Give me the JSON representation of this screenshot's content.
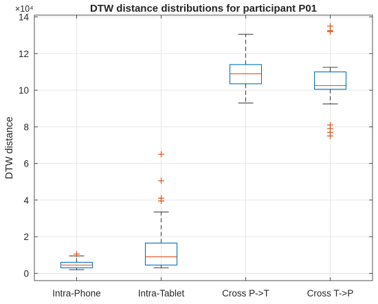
{
  "chart_data": {
    "type": "box",
    "title": "DTW distance distributions for participant P01",
    "xlabel": "",
    "ylabel": "DTW distance",
    "y_exponent_label": "×10⁴",
    "y_scale_factor": 10000,
    "ylim": [
      -0.4,
      14.1
    ],
    "yticks": [
      0,
      2,
      4,
      6,
      8,
      10,
      12,
      14
    ],
    "ytick_labels": [
      "0",
      "2",
      "4",
      "6",
      "8",
      "10",
      "12",
      "14"
    ],
    "grid": true,
    "categories": [
      "Intra-Phone",
      "Intra-Tablet",
      "Cross P->T",
      "Cross T->P"
    ],
    "boxes": [
      {
        "category": "Intra-Phone",
        "whisker_low": 0.2,
        "q1": 0.3,
        "median": 0.45,
        "q3": 0.6,
        "whisker_high": 0.95,
        "outliers": [
          1.05
        ]
      },
      {
        "category": "Intra-Tablet",
        "whisker_low": 0.3,
        "q1": 0.45,
        "median": 0.9,
        "q3": 1.65,
        "whisker_high": 3.35,
        "outliers": [
          3.95,
          4.1,
          5.05,
          6.5
        ]
      },
      {
        "category": "Cross P->T",
        "whisker_low": 9.3,
        "q1": 10.35,
        "median": 10.9,
        "q3": 11.4,
        "whisker_high": 13.05,
        "outliers": []
      },
      {
        "category": "Cross T->P",
        "whisker_low": 9.25,
        "q1": 10.05,
        "median": 10.25,
        "q3": 11.0,
        "whisker_high": 11.25,
        "outliers": [
          7.5,
          7.7,
          7.9,
          8.1,
          13.2,
          13.25,
          13.5
        ]
      }
    ],
    "colors": {
      "box": "#0072BD",
      "median": "#D95319",
      "outlier": "#D95319",
      "whisker": "#404040",
      "grid": "#e6e6e6",
      "axis": "#262626"
    }
  }
}
